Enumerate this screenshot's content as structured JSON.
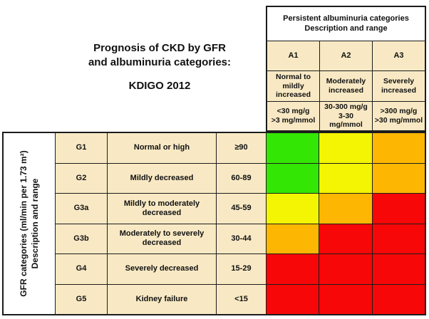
{
  "colors": {
    "cream": "#F8E9C4",
    "white": "#FFFFFF",
    "green": "#33E603",
    "yellow": "#F3F502",
    "orange": "#FDB702",
    "red": "#F70707",
    "grid_line": "#1C1C1C"
  },
  "chart_data": {
    "type": "heatmap",
    "title": "Prognosis of CKD by GFR and albuminuria categories: KDIGO 2012",
    "title_lines": [
      "Prognosis of CKD by GFR",
      "and albuminuria categories:",
      "KDIGO 2012"
    ],
    "column_axis_title": [
      "Persistent albuminuria categories",
      "Description and range"
    ],
    "row_axis_title": [
      "GFR categories (ml/min per 1.73 m²)",
      "Description and range"
    ],
    "columns": [
      {
        "code": "A1",
        "description": "Normal to mildly increased",
        "range": "<30 mg/g\n>3 mg/mmol"
      },
      {
        "code": "A2",
        "description": "Moderately increased",
        "range": "30-300 mg/g\n3-30 mg/mmol"
      },
      {
        "code": "A3",
        "description": "Severely increased",
        "range": ">300 mg/g\n>30 mg/mmol"
      }
    ],
    "rows": [
      {
        "code": "G1",
        "description": "Normal or high",
        "range": "≥90",
        "risk": [
          "green",
          "yellow",
          "orange"
        ]
      },
      {
        "code": "G2",
        "description": "Mildly decreased",
        "range": "60-89",
        "risk": [
          "green",
          "yellow",
          "orange"
        ]
      },
      {
        "code": "G3a",
        "description": "Mildly to moderately decreased",
        "range": "45-59",
        "risk": [
          "yellow",
          "orange",
          "red"
        ]
      },
      {
        "code": "G3b",
        "description": "Moderately to severely decreased",
        "range": "30-44",
        "risk": [
          "orange",
          "red",
          "red"
        ]
      },
      {
        "code": "G4",
        "description": "Severely decreased",
        "range": "15-29",
        "risk": [
          "red",
          "red",
          "red"
        ]
      },
      {
        "code": "G5",
        "description": "Kidney failure",
        "range": "<15",
        "risk": [
          "red",
          "red",
          "red"
        ]
      }
    ],
    "legend_position": "none",
    "grid": true
  }
}
